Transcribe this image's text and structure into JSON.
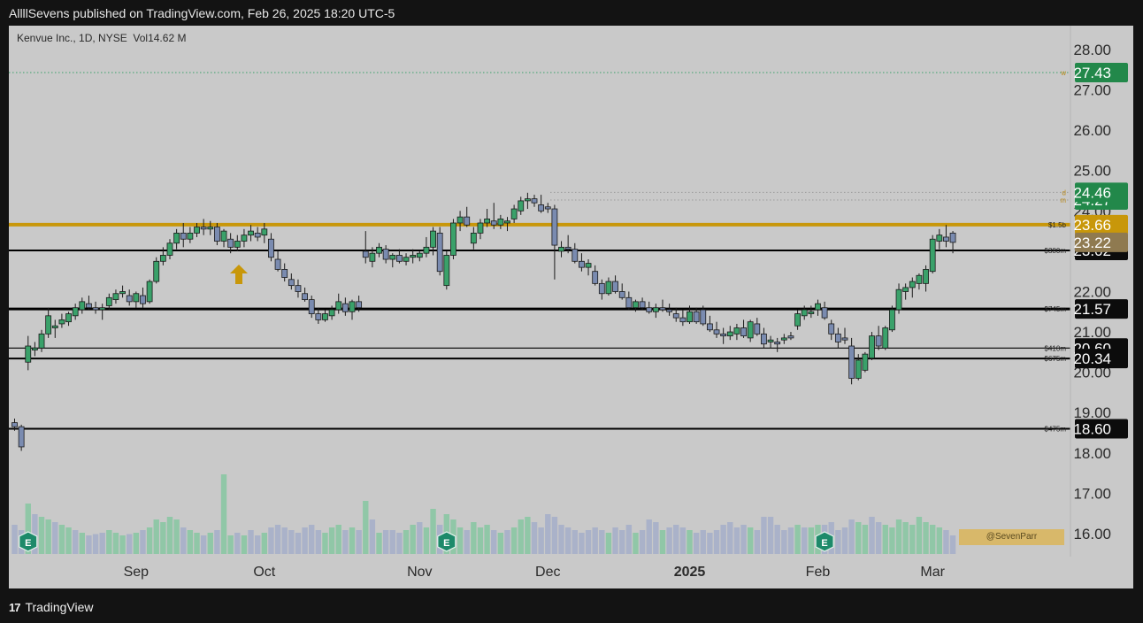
{
  "header": {
    "publisher": "AllllSevens published on TradingView.com, Feb 26, 2025 18:20 UTC-5"
  },
  "legend": {
    "symbol": "Kenvue Inc., 1D, NYSE",
    "volume": "Vol14.62 M"
  },
  "footer": {
    "brand": "TradingView",
    "logo": "17"
  },
  "credit": "@SevenParr",
  "colors": {
    "up": "#3aa16a",
    "down": "#7a8bb0",
    "gold": "#c8970a",
    "badge_green": "#22884a",
    "badge_black": "#0c0c0c",
    "badge_gold": "#c8970a",
    "badge_tan": "#8f7a50"
  },
  "chart_data": {
    "type": "candlestick",
    "y_axis_ticks": [
      "16.00",
      "17.00",
      "18.00",
      "19.00",
      "20.00",
      "21.00",
      "22.00",
      "23.00",
      "24.00",
      "25.00",
      "26.00",
      "27.00",
      "28.00"
    ],
    "y_axis_range": [
      16.0,
      28.0
    ],
    "x_axis_labels": [
      {
        "label": "Sep",
        "bold": false,
        "i": 18
      },
      {
        "label": "Oct",
        "bold": false,
        "i": 37
      },
      {
        "label": "Nov",
        "bold": false,
        "i": 60
      },
      {
        "label": "Dec",
        "bold": false,
        "i": 79
      },
      {
        "label": "2025",
        "bold": true,
        "i": 100
      },
      {
        "label": "Feb",
        "bold": false,
        "i": 119
      },
      {
        "label": "Mar",
        "bold": false,
        "i": 136
      }
    ],
    "levels": [
      {
        "price": 23.66,
        "kind": "thick-gold",
        "tag": "$1.5b",
        "badge": "23.66",
        "badge_style": "gold"
      },
      {
        "price": 23.02,
        "kind": "black",
        "tag": "$380m",
        "badge": "23.02",
        "badge_style": "black"
      },
      {
        "price": 21.57,
        "kind": "thick-black",
        "tag": "$745m",
        "badge": "21.57",
        "badge_style": "black"
      },
      {
        "price": 20.6,
        "kind": "thin-black",
        "tag": "$410m",
        "badge": "20.60",
        "badge_style": "black"
      },
      {
        "price": 20.34,
        "kind": "black",
        "tag": "$675m",
        "badge": "20.34",
        "badge_style": "black"
      },
      {
        "price": 18.6,
        "kind": "black",
        "tag": "$475m",
        "badge": "18.60",
        "badge_style": "black"
      },
      {
        "price": 27.43,
        "kind": "dotted-green",
        "tag": "w",
        "badge": "27.43",
        "badge_style": "green"
      },
      {
        "price": 24.27,
        "kind": "dotted-grey",
        "tag": "m",
        "badge": "24.27",
        "badge_style": "green"
      },
      {
        "price": 24.46,
        "kind": "dotted-grey",
        "tag": "d",
        "badge": "24.46",
        "badge_style": "green"
      }
    ],
    "current_price_badge": {
      "value": "23.22",
      "price": 23.22,
      "style": "tan"
    },
    "earnings_markers": [
      {
        "label": "E",
        "i": 2
      },
      {
        "label": "E",
        "i": 64
      },
      {
        "label": "E",
        "i": 120
      }
    ],
    "candles": [
      [
        18.75,
        18.85,
        18.55,
        18.65
      ],
      [
        18.65,
        18.7,
        18.05,
        18.15
      ],
      [
        20.25,
        20.9,
        20.05,
        20.65
      ],
      [
        20.55,
        20.75,
        20.4,
        20.6
      ],
      [
        20.6,
        21.05,
        20.5,
        20.95
      ],
      [
        20.95,
        21.6,
        20.85,
        21.4
      ],
      [
        21.1,
        21.3,
        20.85,
        21.15
      ],
      [
        21.2,
        21.45,
        21.1,
        21.3
      ],
      [
        21.25,
        21.5,
        21.15,
        21.45
      ],
      [
        21.4,
        21.7,
        21.3,
        21.6
      ],
      [
        21.55,
        21.85,
        21.45,
        21.75
      ],
      [
        21.7,
        21.9,
        21.55,
        21.6
      ],
      [
        21.6,
        21.75,
        21.45,
        21.55
      ],
      [
        21.55,
        21.7,
        21.3,
        21.6
      ],
      [
        21.65,
        21.95,
        21.55,
        21.85
      ],
      [
        21.8,
        22.05,
        21.7,
        21.95
      ],
      [
        21.95,
        22.15,
        21.85,
        22.0
      ],
      [
        21.9,
        22.05,
        21.65,
        21.75
      ],
      [
        21.75,
        22.0,
        21.6,
        21.95
      ],
      [
        21.9,
        22.1,
        21.6,
        21.7
      ],
      [
        21.75,
        22.3,
        21.7,
        22.25
      ],
      [
        22.25,
        22.85,
        22.2,
        22.75
      ],
      [
        22.75,
        23.1,
        22.65,
        22.9
      ],
      [
        22.9,
        23.3,
        22.8,
        23.2
      ],
      [
        23.2,
        23.55,
        23.05,
        23.45
      ],
      [
        23.45,
        23.7,
        23.1,
        23.3
      ],
      [
        23.3,
        23.6,
        23.2,
        23.45
      ],
      [
        23.45,
        23.7,
        23.35,
        23.6
      ],
      [
        23.6,
        23.8,
        23.4,
        23.55
      ],
      [
        23.55,
        23.75,
        23.4,
        23.6
      ],
      [
        23.6,
        23.7,
        23.15,
        23.25
      ],
      [
        23.25,
        23.55,
        23.1,
        23.5
      ],
      [
        23.3,
        23.45,
        22.95,
        23.1
      ],
      [
        23.1,
        23.4,
        23.0,
        23.25
      ],
      [
        23.25,
        23.55,
        23.1,
        23.4
      ],
      [
        23.4,
        23.65,
        23.25,
        23.5
      ],
      [
        23.45,
        23.6,
        23.25,
        23.35
      ],
      [
        23.4,
        23.7,
        23.2,
        23.55
      ],
      [
        23.3,
        23.45,
        22.75,
        22.85
      ],
      [
        22.8,
        23.0,
        22.5,
        22.55
      ],
      [
        22.55,
        22.7,
        22.25,
        22.35
      ],
      [
        22.3,
        22.45,
        22.05,
        22.15
      ],
      [
        22.15,
        22.3,
        21.85,
        22.0
      ],
      [
        21.95,
        22.1,
        21.75,
        21.8
      ],
      [
        21.8,
        21.9,
        21.35,
        21.45
      ],
      [
        21.45,
        21.6,
        21.2,
        21.3
      ],
      [
        21.3,
        21.55,
        21.25,
        21.45
      ],
      [
        21.4,
        21.65,
        21.3,
        21.55
      ],
      [
        21.55,
        21.95,
        21.45,
        21.75
      ],
      [
        21.7,
        21.85,
        21.4,
        21.5
      ],
      [
        21.5,
        21.8,
        21.3,
        21.75
      ],
      [
        21.75,
        21.9,
        21.5,
        21.6
      ],
      [
        23.0,
        23.5,
        22.7,
        22.85
      ],
      [
        22.75,
        23.1,
        22.6,
        22.95
      ],
      [
        22.95,
        23.2,
        22.85,
        23.1
      ],
      [
        23.05,
        23.15,
        22.7,
        22.8
      ],
      [
        22.8,
        22.95,
        22.6,
        22.9
      ],
      [
        22.9,
        23.05,
        22.7,
        22.75
      ],
      [
        22.75,
        22.95,
        22.65,
        22.85
      ],
      [
        22.85,
        23.05,
        22.7,
        22.9
      ],
      [
        22.85,
        23.0,
        22.75,
        22.95
      ],
      [
        22.95,
        23.35,
        22.85,
        23.1
      ],
      [
        23.1,
        23.6,
        22.9,
        23.5
      ],
      [
        23.45,
        23.6,
        22.4,
        22.5
      ],
      [
        22.15,
        23.0,
        22.05,
        22.9
      ],
      [
        22.9,
        23.8,
        22.8,
        23.7
      ],
      [
        23.7,
        24.0,
        23.5,
        23.85
      ],
      [
        23.85,
        24.1,
        23.6,
        23.65
      ],
      [
        23.2,
        23.6,
        23.05,
        23.45
      ],
      [
        23.45,
        23.8,
        23.3,
        23.7
      ],
      [
        23.7,
        24.05,
        23.6,
        23.8
      ],
      [
        23.75,
        24.2,
        23.55,
        23.65
      ],
      [
        23.65,
        23.9,
        23.55,
        23.8
      ],
      [
        23.7,
        23.85,
        23.5,
        23.75
      ],
      [
        23.8,
        24.15,
        23.7,
        24.05
      ],
      [
        24.0,
        24.35,
        23.9,
        24.25
      ],
      [
        24.25,
        24.45,
        24.05,
        24.3
      ],
      [
        24.3,
        24.4,
        24.1,
        24.2
      ],
      [
        24.15,
        24.4,
        23.95,
        24.0
      ],
      [
        24.1,
        24.2,
        23.95,
        24.05
      ],
      [
        24.05,
        24.15,
        22.3,
        23.15
      ],
      [
        23.0,
        23.25,
        22.85,
        23.1
      ],
      [
        23.1,
        23.4,
        22.95,
        23.05
      ],
      [
        23.05,
        23.2,
        22.7,
        22.75
      ],
      [
        22.75,
        22.95,
        22.5,
        22.6
      ],
      [
        22.6,
        22.8,
        22.4,
        22.7
      ],
      [
        22.5,
        22.65,
        22.15,
        22.2
      ],
      [
        22.2,
        22.3,
        21.8,
        21.95
      ],
      [
        21.95,
        22.35,
        21.9,
        22.25
      ],
      [
        22.25,
        22.4,
        21.95,
        22.0
      ],
      [
        22.0,
        22.2,
        21.8,
        21.85
      ],
      [
        21.85,
        22.0,
        21.55,
        21.6
      ],
      [
        21.6,
        21.8,
        21.5,
        21.75
      ],
      [
        21.75,
        21.85,
        21.55,
        21.6
      ],
      [
        21.6,
        21.75,
        21.45,
        21.5
      ],
      [
        21.5,
        21.7,
        21.35,
        21.6
      ],
      [
        21.6,
        21.8,
        21.5,
        21.55
      ],
      [
        21.55,
        21.7,
        21.4,
        21.5
      ],
      [
        21.45,
        21.6,
        21.25,
        21.35
      ],
      [
        21.35,
        21.55,
        21.15,
        21.25
      ],
      [
        21.25,
        21.65,
        21.2,
        21.5
      ],
      [
        21.5,
        21.6,
        21.2,
        21.25
      ],
      [
        21.55,
        21.65,
        21.15,
        21.2
      ],
      [
        21.2,
        21.4,
        21.0,
        21.05
      ],
      [
        21.05,
        21.25,
        20.85,
        20.95
      ],
      [
        20.95,
        21.1,
        20.7,
        20.9
      ],
      [
        20.9,
        21.15,
        20.8,
        21.0
      ],
      [
        20.95,
        21.2,
        20.8,
        21.1
      ],
      [
        21.1,
        21.3,
        20.85,
        20.9
      ],
      [
        20.85,
        21.3,
        20.75,
        21.25
      ],
      [
        21.2,
        21.35,
        20.9,
        20.95
      ],
      [
        20.95,
        21.1,
        20.6,
        20.7
      ],
      [
        20.75,
        20.9,
        20.6,
        20.8
      ],
      [
        20.75,
        20.85,
        20.5,
        20.7
      ],
      [
        20.8,
        20.95,
        20.7,
        20.85
      ],
      [
        20.9,
        21.0,
        20.8,
        20.85
      ],
      [
        21.15,
        21.55,
        21.05,
        21.45
      ],
      [
        21.4,
        21.65,
        21.3,
        21.55
      ],
      [
        21.45,
        21.65,
        21.35,
        21.5
      ],
      [
        21.55,
        21.8,
        21.4,
        21.7
      ],
      [
        21.6,
        21.75,
        21.3,
        21.35
      ],
      [
        21.2,
        21.3,
        20.8,
        20.95
      ],
      [
        20.95,
        21.1,
        20.6,
        20.75
      ],
      [
        20.85,
        21.1,
        20.7,
        20.8
      ],
      [
        20.65,
        20.85,
        19.7,
        19.85
      ],
      [
        19.85,
        20.45,
        19.8,
        20.3
      ],
      [
        20.05,
        20.5,
        20.0,
        20.45
      ],
      [
        20.35,
        21.0,
        20.3,
        20.9
      ],
      [
        20.9,
        21.15,
        20.55,
        20.65
      ],
      [
        20.6,
        21.15,
        20.55,
        21.1
      ],
      [
        21.05,
        21.65,
        21.0,
        21.55
      ],
      [
        21.55,
        22.2,
        21.45,
        22.05
      ],
      [
        22.0,
        22.2,
        21.8,
        22.1
      ],
      [
        22.1,
        22.35,
        21.85,
        22.25
      ],
      [
        22.2,
        22.45,
        22.05,
        22.4
      ],
      [
        22.2,
        22.65,
        22.0,
        22.55
      ],
      [
        22.5,
        23.4,
        22.45,
        23.3
      ],
      [
        23.25,
        23.55,
        23.05,
        23.4
      ],
      [
        23.35,
        23.65,
        23.1,
        23.25
      ],
      [
        23.45,
        23.5,
        22.95,
        23.22
      ]
    ],
    "volume": [
      [
        1.1,
        0
      ],
      [
        0.9,
        0
      ],
      [
        1.9,
        1
      ],
      [
        1.5,
        0
      ],
      [
        1.4,
        1
      ],
      [
        1.3,
        1
      ],
      [
        1.2,
        0
      ],
      [
        1.1,
        1
      ],
      [
        1.0,
        1
      ],
      [
        0.9,
        0
      ],
      [
        0.8,
        1
      ],
      [
        0.7,
        0
      ],
      [
        0.75,
        0
      ],
      [
        0.8,
        0
      ],
      [
        0.9,
        1
      ],
      [
        0.8,
        1
      ],
      [
        0.7,
        1
      ],
      [
        0.75,
        0
      ],
      [
        0.8,
        1
      ],
      [
        0.9,
        0
      ],
      [
        1.0,
        1
      ],
      [
        1.3,
        1
      ],
      [
        1.2,
        1
      ],
      [
        1.4,
        1
      ],
      [
        1.3,
        1
      ],
      [
        1.0,
        0
      ],
      [
        0.9,
        1
      ],
      [
        0.8,
        1
      ],
      [
        0.7,
        0
      ],
      [
        0.8,
        1
      ],
      [
        0.9,
        0
      ],
      [
        3.0,
        1
      ],
      [
        0.7,
        1
      ],
      [
        0.8,
        0
      ],
      [
        0.7,
        1
      ],
      [
        0.9,
        0
      ],
      [
        0.7,
        0
      ],
      [
        0.8,
        1
      ],
      [
        1.0,
        0
      ],
      [
        1.1,
        0
      ],
      [
        1.0,
        0
      ],
      [
        0.9,
        0
      ],
      [
        0.8,
        0
      ],
      [
        1.0,
        0
      ],
      [
        1.1,
        0
      ],
      [
        0.9,
        0
      ],
      [
        0.8,
        1
      ],
      [
        1.0,
        1
      ],
      [
        1.1,
        1
      ],
      [
        0.9,
        0
      ],
      [
        1.0,
        1
      ],
      [
        0.9,
        0
      ],
      [
        2.0,
        1
      ],
      [
        1.3,
        0
      ],
      [
        0.8,
        1
      ],
      [
        0.9,
        0
      ],
      [
        0.9,
        0
      ],
      [
        0.8,
        0
      ],
      [
        0.9,
        1
      ],
      [
        1.1,
        1
      ],
      [
        1.2,
        0
      ],
      [
        1.0,
        1
      ],
      [
        1.7,
        1
      ],
      [
        1.1,
        0
      ],
      [
        1.5,
        1
      ],
      [
        1.3,
        1
      ],
      [
        1.0,
        1
      ],
      [
        0.9,
        0
      ],
      [
        1.2,
        1
      ],
      [
        1.0,
        1
      ],
      [
        1.1,
        1
      ],
      [
        0.9,
        0
      ],
      [
        0.8,
        1
      ],
      [
        0.9,
        0
      ],
      [
        1.0,
        1
      ],
      [
        1.3,
        1
      ],
      [
        1.4,
        1
      ],
      [
        1.2,
        0
      ],
      [
        1.0,
        0
      ],
      [
        1.5,
        0
      ],
      [
        1.4,
        0
      ],
      [
        1.1,
        0
      ],
      [
        1.0,
        0
      ],
      [
        0.9,
        0
      ],
      [
        0.8,
        0
      ],
      [
        0.9,
        0
      ],
      [
        1.0,
        0
      ],
      [
        0.9,
        0
      ],
      [
        0.8,
        1
      ],
      [
        1.0,
        0
      ],
      [
        0.9,
        0
      ],
      [
        1.1,
        0
      ],
      [
        0.8,
        1
      ],
      [
        0.9,
        0
      ],
      [
        1.3,
        0
      ],
      [
        1.2,
        0
      ],
      [
        0.9,
        1
      ],
      [
        1.0,
        0
      ],
      [
        1.1,
        0
      ],
      [
        1.0,
        0
      ],
      [
        0.9,
        1
      ],
      [
        0.8,
        0
      ],
      [
        0.9,
        0
      ],
      [
        0.8,
        0
      ],
      [
        0.9,
        0
      ],
      [
        1.1,
        0
      ],
      [
        1.2,
        0
      ],
      [
        1.0,
        0
      ],
      [
        1.1,
        0
      ],
      [
        1.0,
        1
      ],
      [
        0.9,
        0
      ],
      [
        1.4,
        0
      ],
      [
        1.4,
        0
      ],
      [
        1.1,
        0
      ],
      [
        0.9,
        0
      ],
      [
        1.0,
        0
      ],
      [
        1.1,
        1
      ],
      [
        1.0,
        0
      ],
      [
        1.0,
        1
      ],
      [
        1.1,
        1
      ],
      [
        1.1,
        0
      ],
      [
        1.2,
        0
      ],
      [
        0.9,
        0
      ],
      [
        1.0,
        0
      ],
      [
        1.3,
        0
      ],
      [
        1.2,
        1
      ],
      [
        1.1,
        1
      ],
      [
        1.4,
        0
      ],
      [
        1.2,
        0
      ],
      [
        1.1,
        1
      ],
      [
        1.0,
        1
      ],
      [
        1.3,
        1
      ],
      [
        1.2,
        1
      ],
      [
        1.1,
        1
      ],
      [
        1.4,
        1
      ],
      [
        1.2,
        1
      ],
      [
        1.1,
        1
      ],
      [
        1.0,
        1
      ],
      [
        0.9,
        0
      ],
      [
        0.7,
        0
      ]
    ]
  }
}
